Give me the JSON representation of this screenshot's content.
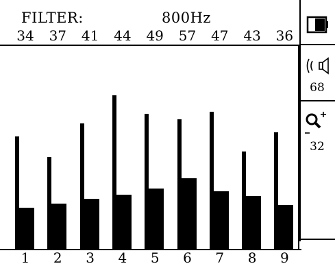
{
  "header": {
    "filter_label": "FILTER:",
    "frequency": "800Hz"
  },
  "bars": {
    "values": [
      "34",
      "37",
      "41",
      "44",
      "49",
      "57",
      "47",
      "43",
      "36"
    ],
    "indices": [
      "1",
      "2",
      "3",
      "4",
      "5",
      "6",
      "7",
      "8",
      "9"
    ],
    "levels": [
      34,
      37,
      41,
      44,
      49,
      57,
      47,
      43,
      36
    ],
    "peak_levels": [
      61,
      50,
      68,
      83,
      73,
      70,
      74,
      53,
      63
    ]
  },
  "right_panel": {
    "battery_icon": "battery-icon",
    "volume_icon": "speaker-volume-icon",
    "volume_value": "68",
    "zoom_icon": "zoom-icon",
    "zoom_value": "32"
  }
}
